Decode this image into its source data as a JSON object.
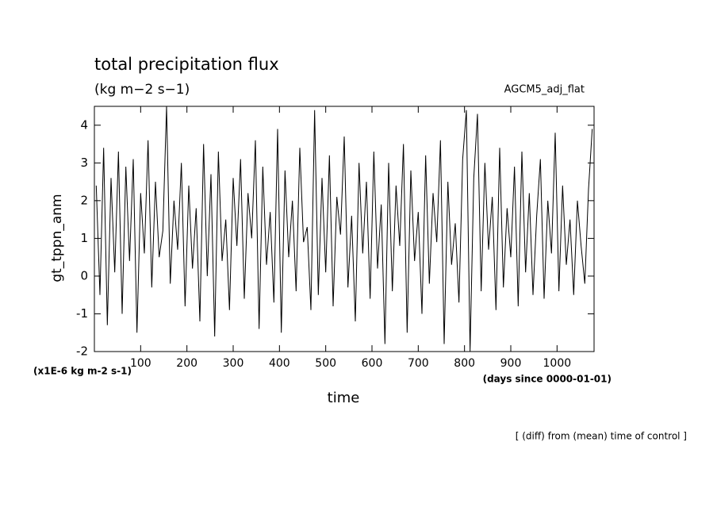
{
  "chart_data": {
    "type": "line",
    "title": "total precipitation flux",
    "subtitle": "(kg m−2 s−1)",
    "annotation": "AGCM5_adj_flat",
    "ylabel": "gt_tppn_anm",
    "yunit": "(x1E-6 kg m-2 s-1)",
    "xlabel": "time",
    "xunit": "(days since 0000-01-01)",
    "footer": "[ (diff) from (mean) time of control ]",
    "color": "#000000",
    "xlim": [
      0,
      1080
    ],
    "ylim": [
      -2,
      4.5
    ],
    "xticks": [
      100,
      200,
      300,
      400,
      500,
      600,
      700,
      800,
      900,
      1000
    ],
    "yticks": [
      -2,
      -1,
      0,
      1,
      2,
      3,
      4
    ],
    "x": [
      4,
      12,
      20,
      28,
      36,
      44,
      52,
      60,
      68,
      76,
      84,
      92,
      100,
      108,
      116,
      124,
      132,
      140,
      148,
      156,
      164,
      172,
      180,
      188,
      196,
      204,
      212,
      220,
      228,
      236,
      244,
      252,
      260,
      268,
      276,
      284,
      292,
      300,
      308,
      316,
      324,
      332,
      340,
      348,
      356,
      364,
      372,
      380,
      388,
      396,
      404,
      412,
      420,
      428,
      436,
      444,
      452,
      460,
      468,
      476,
      484,
      492,
      500,
      508,
      516,
      524,
      532,
      540,
      548,
      556,
      564,
      572,
      580,
      588,
      596,
      604,
      612,
      620,
      628,
      636,
      644,
      652,
      660,
      668,
      676,
      684,
      692,
      700,
      708,
      716,
      724,
      732,
      740,
      748,
      756,
      764,
      772,
      780,
      788,
      796,
      804,
      812,
      820,
      828,
      836,
      844,
      852,
      860,
      868,
      876,
      884,
      892,
      900,
      908,
      916,
      924,
      932,
      940,
      948,
      956,
      964,
      972,
      980,
      988,
      996,
      1004,
      1012,
      1020,
      1028,
      1036,
      1044,
      1052,
      1060,
      1068,
      1076
    ],
    "values": [
      2.4,
      -0.5,
      3.4,
      -1.3,
      2.6,
      0.1,
      3.3,
      -1.0,
      2.9,
      0.4,
      3.1,
      -1.5,
      2.2,
      0.6,
      3.6,
      -0.3,
      2.5,
      0.5,
      1.2,
      4.5,
      -0.2,
      2.0,
      0.7,
      3.0,
      -0.8,
      2.4,
      0.2,
      1.8,
      -1.2,
      3.5,
      0.0,
      2.7,
      -1.6,
      3.3,
      0.4,
      1.5,
      -0.9,
      2.6,
      0.8,
      3.1,
      -0.6,
      2.2,
      1.0,
      3.6,
      -1.4,
      2.9,
      0.3,
      1.7,
      -0.7,
      3.9,
      -1.5,
      2.8,
      0.5,
      2.0,
      -0.4,
      3.4,
      0.9,
      1.3,
      -0.9,
      4.4,
      -0.5,
      2.6,
      0.1,
      3.2,
      -0.8,
      2.1,
      1.1,
      3.7,
      -0.3,
      1.6,
      -1.2,
      3.0,
      0.6,
      2.5,
      -0.6,
      3.3,
      0.2,
      1.9,
      -1.8,
      3.0,
      -0.4,
      2.4,
      0.8,
      3.5,
      -1.5,
      2.8,
      0.4,
      1.7,
      -1.0,
      3.2,
      -0.2,
      2.2,
      0.9,
      3.6,
      -1.8,
      2.5,
      0.3,
      1.4,
      -0.7,
      3.1,
      4.4,
      -2.0,
      2.6,
      4.3,
      -0.4,
      3.0,
      0.7,
      2.1,
      -0.9,
      3.4,
      -0.3,
      1.8,
      0.5,
      2.9,
      -0.8,
      3.3,
      0.1,
      2.2,
      -0.5,
      1.6,
      3.1,
      -0.6,
      2.0,
      0.6,
      3.8,
      -0.4,
      2.4,
      0.3,
      1.5,
      -0.5,
      2.0,
      0.8,
      -0.2,
      2.3,
      3.9
    ]
  }
}
